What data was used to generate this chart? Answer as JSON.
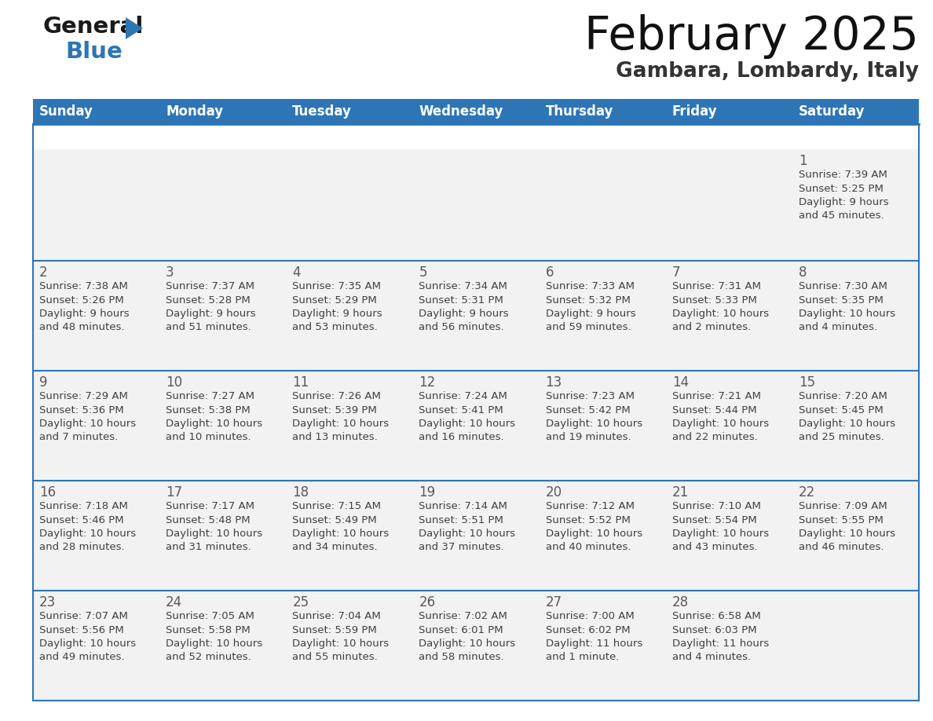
{
  "title": "February 2025",
  "subtitle": "Gambara, Lombardy, Italy",
  "header_bg": "#2E75B6",
  "header_text": "#FFFFFF",
  "cell_bg": "#F2F2F2",
  "day_number_color": "#595959",
  "info_text_color": "#404040",
  "border_color": "#2E75B6",
  "weekdays": [
    "Sunday",
    "Monday",
    "Tuesday",
    "Wednesday",
    "Thursday",
    "Friday",
    "Saturday"
  ],
  "days_data": [
    {
      "day": 1,
      "col": 6,
      "row": 0,
      "sunrise": "7:39 AM",
      "sunset": "5:25 PM",
      "daylight": "9 hours and 45 minutes."
    },
    {
      "day": 2,
      "col": 0,
      "row": 1,
      "sunrise": "7:38 AM",
      "sunset": "5:26 PM",
      "daylight": "9 hours and 48 minutes."
    },
    {
      "day": 3,
      "col": 1,
      "row": 1,
      "sunrise": "7:37 AM",
      "sunset": "5:28 PM",
      "daylight": "9 hours and 51 minutes."
    },
    {
      "day": 4,
      "col": 2,
      "row": 1,
      "sunrise": "7:35 AM",
      "sunset": "5:29 PM",
      "daylight": "9 hours and 53 minutes."
    },
    {
      "day": 5,
      "col": 3,
      "row": 1,
      "sunrise": "7:34 AM",
      "sunset": "5:31 PM",
      "daylight": "9 hours and 56 minutes."
    },
    {
      "day": 6,
      "col": 4,
      "row": 1,
      "sunrise": "7:33 AM",
      "sunset": "5:32 PM",
      "daylight": "9 hours and 59 minutes."
    },
    {
      "day": 7,
      "col": 5,
      "row": 1,
      "sunrise": "7:31 AM",
      "sunset": "5:33 PM",
      "daylight": "10 hours and 2 minutes."
    },
    {
      "day": 8,
      "col": 6,
      "row": 1,
      "sunrise": "7:30 AM",
      "sunset": "5:35 PM",
      "daylight": "10 hours and 4 minutes."
    },
    {
      "day": 9,
      "col": 0,
      "row": 2,
      "sunrise": "7:29 AM",
      "sunset": "5:36 PM",
      "daylight": "10 hours and 7 minutes."
    },
    {
      "day": 10,
      "col": 1,
      "row": 2,
      "sunrise": "7:27 AM",
      "sunset": "5:38 PM",
      "daylight": "10 hours and 10 minutes."
    },
    {
      "day": 11,
      "col": 2,
      "row": 2,
      "sunrise": "7:26 AM",
      "sunset": "5:39 PM",
      "daylight": "10 hours and 13 minutes."
    },
    {
      "day": 12,
      "col": 3,
      "row": 2,
      "sunrise": "7:24 AM",
      "sunset": "5:41 PM",
      "daylight": "10 hours and 16 minutes."
    },
    {
      "day": 13,
      "col": 4,
      "row": 2,
      "sunrise": "7:23 AM",
      "sunset": "5:42 PM",
      "daylight": "10 hours and 19 minutes."
    },
    {
      "day": 14,
      "col": 5,
      "row": 2,
      "sunrise": "7:21 AM",
      "sunset": "5:44 PM",
      "daylight": "10 hours and 22 minutes."
    },
    {
      "day": 15,
      "col": 6,
      "row": 2,
      "sunrise": "7:20 AM",
      "sunset": "5:45 PM",
      "daylight": "10 hours and 25 minutes."
    },
    {
      "day": 16,
      "col": 0,
      "row": 3,
      "sunrise": "7:18 AM",
      "sunset": "5:46 PM",
      "daylight": "10 hours and 28 minutes."
    },
    {
      "day": 17,
      "col": 1,
      "row": 3,
      "sunrise": "7:17 AM",
      "sunset": "5:48 PM",
      "daylight": "10 hours and 31 minutes."
    },
    {
      "day": 18,
      "col": 2,
      "row": 3,
      "sunrise": "7:15 AM",
      "sunset": "5:49 PM",
      "daylight": "10 hours and 34 minutes."
    },
    {
      "day": 19,
      "col": 3,
      "row": 3,
      "sunrise": "7:14 AM",
      "sunset": "5:51 PM",
      "daylight": "10 hours and 37 minutes."
    },
    {
      "day": 20,
      "col": 4,
      "row": 3,
      "sunrise": "7:12 AM",
      "sunset": "5:52 PM",
      "daylight": "10 hours and 40 minutes."
    },
    {
      "day": 21,
      "col": 5,
      "row": 3,
      "sunrise": "7:10 AM",
      "sunset": "5:54 PM",
      "daylight": "10 hours and 43 minutes."
    },
    {
      "day": 22,
      "col": 6,
      "row": 3,
      "sunrise": "7:09 AM",
      "sunset": "5:55 PM",
      "daylight": "10 hours and 46 minutes."
    },
    {
      "day": 23,
      "col": 0,
      "row": 4,
      "sunrise": "7:07 AM",
      "sunset": "5:56 PM",
      "daylight": "10 hours and 49 minutes."
    },
    {
      "day": 24,
      "col": 1,
      "row": 4,
      "sunrise": "7:05 AM",
      "sunset": "5:58 PM",
      "daylight": "10 hours and 52 minutes."
    },
    {
      "day": 25,
      "col": 2,
      "row": 4,
      "sunrise": "7:04 AM",
      "sunset": "5:59 PM",
      "daylight": "10 hours and 55 minutes."
    },
    {
      "day": 26,
      "col": 3,
      "row": 4,
      "sunrise": "7:02 AM",
      "sunset": "6:01 PM",
      "daylight": "10 hours and 58 minutes."
    },
    {
      "day": 27,
      "col": 4,
      "row": 4,
      "sunrise": "7:00 AM",
      "sunset": "6:02 PM",
      "daylight": "11 hours and 1 minute."
    },
    {
      "day": 28,
      "col": 5,
      "row": 4,
      "sunrise": "6:58 AM",
      "sunset": "6:03 PM",
      "daylight": "11 hours and 4 minutes."
    }
  ],
  "logo_general_color": "#1a1a1a",
  "logo_blue_color": "#2E75B6",
  "logo_triangle_color": "#2E75B6"
}
